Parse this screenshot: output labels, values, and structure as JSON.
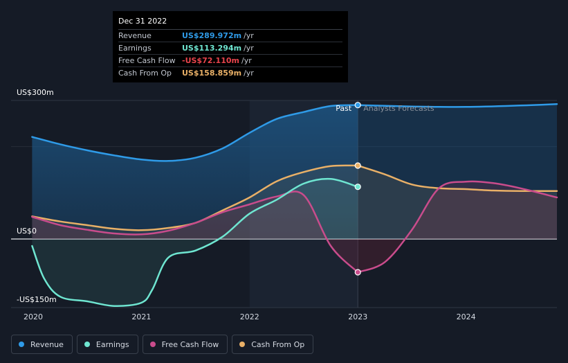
{
  "tooltip": {
    "date": "Dec 31 2022",
    "rows": [
      {
        "label": "Revenue",
        "value": "US$289.972m",
        "unit": "/yr",
        "color": "#2f9be8"
      },
      {
        "label": "Earnings",
        "value": "US$113.294m",
        "unit": "/yr",
        "color": "#6fe6d1"
      },
      {
        "label": "Free Cash Flow",
        "value": "-US$72.110m",
        "unit": "/yr",
        "color": "#e8444c"
      },
      {
        "label": "Cash From Op",
        "value": "US$158.859m",
        "unit": "/yr",
        "color": "#e9b067"
      }
    ]
  },
  "legend": [
    {
      "label": "Revenue",
      "color": "#2f9be8"
    },
    {
      "label": "Earnings",
      "color": "#6fe6d1"
    },
    {
      "label": "Free Cash Flow",
      "color": "#c94c8c"
    },
    {
      "label": "Cash From Op",
      "color": "#e9b067"
    }
  ],
  "chart_data": {
    "type": "line",
    "title": "",
    "xlabel": "",
    "ylabel": "",
    "xlim": [
      2020.0,
      2024.84
    ],
    "ylim": [
      -150,
      300
    ],
    "y_tick_labels": [
      {
        "label": "US$300m",
        "value": 300
      },
      {
        "label": "US$0",
        "value": 0
      },
      {
        "label": "-US$150m",
        "value": -150
      }
    ],
    "x_tick_labels": [
      {
        "label": "2020",
        "value": 2020.0
      },
      {
        "label": "2021",
        "value": 2021.0
      },
      {
        "label": "2022",
        "value": 2022.0
      },
      {
        "label": "2023",
        "value": 2023.0
      },
      {
        "label": "2024",
        "value": 2024.0
      }
    ],
    "past_label": "Past",
    "forecast_label": "Analysts Forecasts",
    "divider_x": 2023.0,
    "highlight_start": 2022.0,
    "series": [
      {
        "name": "Revenue",
        "color": "#2f9be8",
        "past": [
          [
            2019.99,
            221
          ],
          [
            2020.25,
            205
          ],
          [
            2020.5,
            192
          ],
          [
            2020.75,
            181
          ],
          [
            2021.0,
            172
          ],
          [
            2021.25,
            169
          ],
          [
            2021.5,
            176
          ],
          [
            2021.75,
            196
          ],
          [
            2022.0,
            230
          ],
          [
            2022.25,
            260
          ],
          [
            2022.5,
            275
          ],
          [
            2022.75,
            288
          ],
          [
            2023.0,
            290
          ]
        ],
        "forecast": [
          [
            2023.0,
            290
          ],
          [
            2023.5,
            287
          ],
          [
            2024.0,
            286
          ],
          [
            2024.5,
            289
          ],
          [
            2024.84,
            292
          ]
        ]
      },
      {
        "name": "Earnings",
        "color": "#6fe6d1",
        "past": [
          [
            2019.99,
            -15
          ],
          [
            2020.1,
            -85
          ],
          [
            2020.25,
            -125
          ],
          [
            2020.5,
            -135
          ],
          [
            2020.75,
            -145
          ],
          [
            2021.0,
            -138
          ],
          [
            2021.1,
            -110
          ],
          [
            2021.25,
            -40
          ],
          [
            2021.5,
            -25
          ],
          [
            2021.75,
            5
          ],
          [
            2022.0,
            55
          ],
          [
            2022.25,
            85
          ],
          [
            2022.5,
            120
          ],
          [
            2022.75,
            130
          ],
          [
            2023.0,
            113
          ]
        ],
        "forecast": []
      },
      {
        "name": "Free Cash Flow",
        "color": "#c94c8c",
        "past": [
          [
            2019.99,
            48
          ],
          [
            2020.25,
            30
          ],
          [
            2020.5,
            20
          ],
          [
            2020.75,
            12
          ],
          [
            2021.0,
            10
          ],
          [
            2021.25,
            18
          ],
          [
            2021.5,
            35
          ],
          [
            2021.75,
            58
          ],
          [
            2022.0,
            75
          ],
          [
            2022.25,
            92
          ],
          [
            2022.5,
            95
          ],
          [
            2022.75,
            -15
          ],
          [
            2023.0,
            -72
          ]
        ],
        "forecast": [
          [
            2023.0,
            -72
          ],
          [
            2023.25,
            -50
          ],
          [
            2023.5,
            20
          ],
          [
            2023.75,
            110
          ],
          [
            2024.0,
            124
          ],
          [
            2024.25,
            121
          ],
          [
            2024.5,
            110
          ],
          [
            2024.84,
            90
          ]
        ]
      },
      {
        "name": "Cash From Op",
        "color": "#e9b067",
        "past": [
          [
            2019.99,
            49
          ],
          [
            2020.25,
            38
          ],
          [
            2020.5,
            30
          ],
          [
            2020.75,
            22
          ],
          [
            2021.0,
            19
          ],
          [
            2021.25,
            24
          ],
          [
            2021.5,
            35
          ],
          [
            2021.75,
            62
          ],
          [
            2022.0,
            90
          ],
          [
            2022.25,
            125
          ],
          [
            2022.5,
            145
          ],
          [
            2022.75,
            158
          ],
          [
            2023.0,
            159
          ]
        ],
        "forecast": [
          [
            2023.0,
            159
          ],
          [
            2023.25,
            140
          ],
          [
            2023.5,
            118
          ],
          [
            2023.75,
            110
          ],
          [
            2024.0,
            108
          ],
          [
            2024.25,
            105
          ],
          [
            2024.5,
            104
          ],
          [
            2024.84,
            104
          ]
        ]
      }
    ],
    "markers": [
      {
        "series": "Revenue",
        "x": 2023.0,
        "y": 290
      },
      {
        "series": "Cash From Op",
        "x": 2023.0,
        "y": 159
      },
      {
        "series": "Earnings",
        "x": 2023.0,
        "y": 113
      },
      {
        "series": "Free Cash Flow",
        "x": 2023.0,
        "y": -72
      }
    ]
  }
}
